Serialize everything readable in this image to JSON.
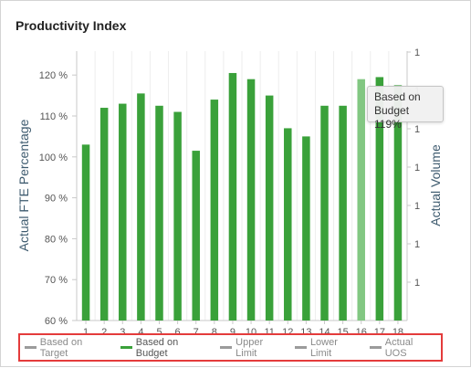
{
  "header": {
    "title": "Productivity Index"
  },
  "tooltip": {
    "series": "Based on Budget",
    "value": "119%"
  },
  "colors": {
    "bar": "#3aa13a",
    "bar_highlight": "#82c782",
    "legend_inactive_text": "#8a8a8a",
    "legend_active_text": "#555555",
    "legend_box_border": "#e43b3b"
  },
  "chart_data": {
    "type": "bar",
    "categories": [
      "1",
      "2",
      "3",
      "4",
      "5",
      "6",
      "7",
      "8",
      "9",
      "10",
      "11",
      "12",
      "13",
      "14",
      "15",
      "16",
      "17",
      "18"
    ],
    "series": [
      {
        "name": "Based on Budget",
        "values": [
          103,
          112,
          113,
          115.5,
          112.5,
          111,
          101.5,
          114,
          120.5,
          119,
          115,
          107,
          105,
          112.5,
          112.5,
          119,
          119.5,
          117.5
        ]
      }
    ],
    "highlighted_index": 15,
    "y_left": {
      "label": "Actual FTE Percentage",
      "ticks": [
        "60 %",
        "70 %",
        "80 %",
        "90 %",
        "100 %",
        "110 %",
        "120 %"
      ],
      "range": [
        60,
        125
      ]
    },
    "y_right": {
      "label": "Actual Volume",
      "ticks": [
        "1",
        "1",
        "1",
        "1",
        "1",
        "1",
        "1"
      ]
    },
    "legend": [
      {
        "label": "Based on Target",
        "active": false,
        "color": "#9b9b9b"
      },
      {
        "label": "Based on Budget",
        "active": true,
        "color": "#3aa13a"
      },
      {
        "label": "Upper Limit",
        "active": false,
        "color": "#9b9b9b"
      },
      {
        "label": "Lower Limit",
        "active": false,
        "color": "#9b9b9b"
      },
      {
        "label": "Actual UOS",
        "active": false,
        "color": "#9b9b9b"
      }
    ],
    "grid": "vertical",
    "legend_position": "bottom"
  }
}
